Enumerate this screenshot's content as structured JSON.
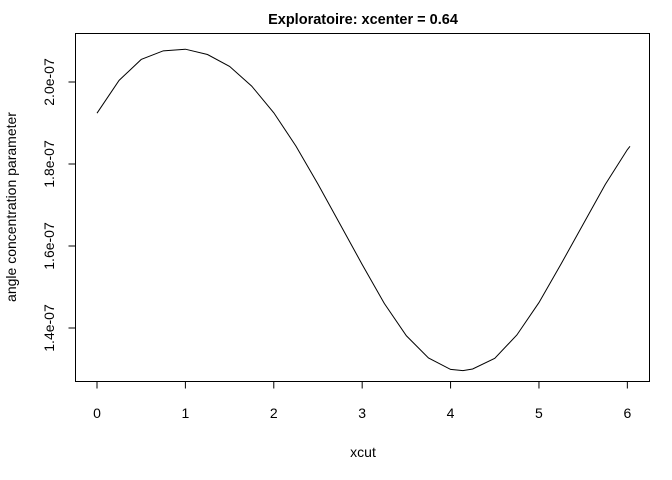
{
  "chart_data": {
    "type": "line",
    "title": "Exploratoire: xcenter = 0.64",
    "xlabel": "xcut",
    "ylabel": "angle concentration parameter",
    "xlim": [
      0,
      6.2832
    ],
    "ylim": [
      1.3e-07,
      2.1e-07
    ],
    "x_ticks": [
      0,
      1,
      2,
      3,
      4,
      5,
      6
    ],
    "x_tick_labels": [
      "0",
      "1",
      "2",
      "3",
      "4",
      "5",
      "6"
    ],
    "y_ticks": [
      1.4e-07,
      1.6e-07,
      1.8e-07,
      2e-07
    ],
    "y_tick_labels": [
      "1.4e-07",
      "1.6e-07",
      "1.8e-07",
      "2.0e-07"
    ],
    "grid": false,
    "legend": "none",
    "series": [
      {
        "x": [
          0,
          0.25,
          0.5,
          0.75,
          1.0,
          1.25,
          1.5,
          1.75,
          2.0,
          2.25,
          2.5,
          2.75,
          3.0,
          3.25,
          3.5,
          3.75,
          4.0,
          4.14,
          4.25,
          4.5,
          4.75,
          5.0,
          5.25,
          5.5,
          5.75,
          6.0,
          6.03
        ],
        "y": [
          1.924e-07,
          2.004e-07,
          2.055e-07,
          2.076e-07,
          2.08e-07,
          2.067e-07,
          2.038e-07,
          1.99e-07,
          1.925e-07,
          1.844e-07,
          1.751e-07,
          1.653e-07,
          1.555e-07,
          1.46e-07,
          1.381e-07,
          1.327e-07,
          1.299e-07,
          1.296e-07,
          1.3e-07,
          1.326e-07,
          1.383e-07,
          1.462e-07,
          1.556e-07,
          1.653e-07,
          1.75e-07,
          1.835e-07,
          1.843e-07
        ]
      }
    ]
  }
}
